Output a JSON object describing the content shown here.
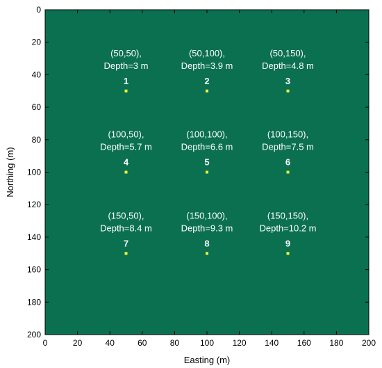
{
  "chart_data": {
    "type": "scatter",
    "xlabel": "Easting (m)",
    "ylabel": "Northing (m)",
    "xlim": [
      0,
      200
    ],
    "ylim": [
      200,
      0
    ],
    "y_axis_reversed": true,
    "xticks": [
      0,
      20,
      40,
      60,
      80,
      100,
      120,
      140,
      160,
      180,
      200
    ],
    "yticks": [
      0,
      20,
      40,
      60,
      80,
      100,
      120,
      140,
      160,
      180,
      200
    ],
    "grid": false,
    "background_color": "#0b7050",
    "marker_color": "#f2f23a",
    "label_color": "#ffffff",
    "points": [
      {
        "id": "1",
        "x": 50,
        "y": 50,
        "coord_text": "(50,50),",
        "depth_text": "Depth=3 m",
        "depth": 3.0
      },
      {
        "id": "2",
        "x": 100,
        "y": 50,
        "coord_text": "(50,100),",
        "depth_text": "Depth=3.9 m",
        "depth": 3.9
      },
      {
        "id": "3",
        "x": 150,
        "y": 50,
        "coord_text": "(50,150),",
        "depth_text": "Depth=4.8 m",
        "depth": 4.8
      },
      {
        "id": "4",
        "x": 50,
        "y": 100,
        "coord_text": "(100,50),",
        "depth_text": "Depth=5.7 m",
        "depth": 5.7
      },
      {
        "id": "5",
        "x": 100,
        "y": 100,
        "coord_text": "(100,100),",
        "depth_text": "Depth=6.6 m",
        "depth": 6.6
      },
      {
        "id": "6",
        "x": 150,
        "y": 100,
        "coord_text": "(100,150),",
        "depth_text": "Depth=7.5 m",
        "depth": 7.5
      },
      {
        "id": "7",
        "x": 50,
        "y": 150,
        "coord_text": "(150,50),",
        "depth_text": "Depth=8.4 m",
        "depth": 8.4
      },
      {
        "id": "8",
        "x": 100,
        "y": 150,
        "coord_text": "(150,100),",
        "depth_text": "Depth=9.3 m",
        "depth": 9.3
      },
      {
        "id": "9",
        "x": 150,
        "y": 150,
        "coord_text": "(150,150),",
        "depth_text": "Depth=10.2 m",
        "depth": 10.2
      }
    ]
  }
}
